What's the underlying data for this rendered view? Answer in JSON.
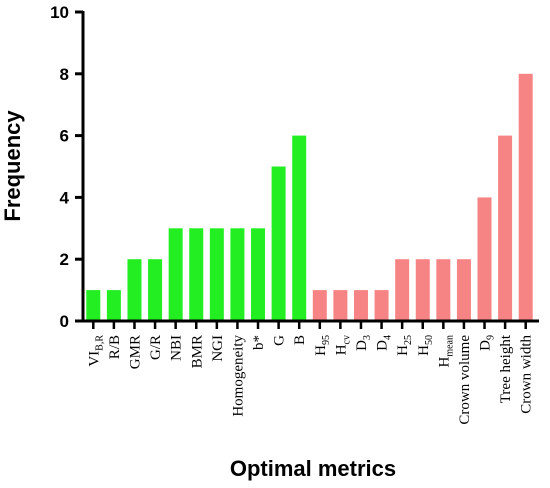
{
  "chart_data": {
    "type": "bar",
    "title": "",
    "xlabel": "Optimal metrics",
    "ylabel": "Frequency",
    "ylim": [
      0,
      10
    ],
    "yticks": [
      0,
      2,
      4,
      6,
      8,
      10
    ],
    "grid": false,
    "legend": "none",
    "categories": [
      {
        "base": "VI",
        "sub": "B,R"
      },
      {
        "base": "R/B"
      },
      {
        "base": "GMR"
      },
      {
        "base": "G/R"
      },
      {
        "base": "NBI"
      },
      {
        "base": "BMR"
      },
      {
        "base": "NGI"
      },
      {
        "base": "Homogeneity"
      },
      {
        "base": "b*"
      },
      {
        "base": "G"
      },
      {
        "base": "B"
      },
      {
        "base": "H",
        "sub": "95"
      },
      {
        "base": "H",
        "sub": "cv"
      },
      {
        "base": "D",
        "sub": "3"
      },
      {
        "base": "D",
        "sub": "4"
      },
      {
        "base": "H",
        "sub": "25"
      },
      {
        "base": "H",
        "sub": "50"
      },
      {
        "base": "H",
        "sub": "mean"
      },
      {
        "base": "Crown volume"
      },
      {
        "base": "D",
        "sub": "9"
      },
      {
        "base": "Tree height"
      },
      {
        "base": "Crown width"
      }
    ],
    "values": [
      1,
      1,
      2,
      2,
      3,
      3,
      3,
      3,
      3,
      5,
      6,
      1,
      1,
      1,
      1,
      2,
      2,
      2,
      2,
      4,
      6,
      8
    ],
    "groups": [
      0,
      0,
      0,
      0,
      0,
      0,
      0,
      0,
      0,
      0,
      0,
      1,
      1,
      1,
      1,
      1,
      1,
      1,
      1,
      1,
      1,
      1
    ],
    "colors": [
      "#22ee22",
      "#f78484"
    ]
  }
}
